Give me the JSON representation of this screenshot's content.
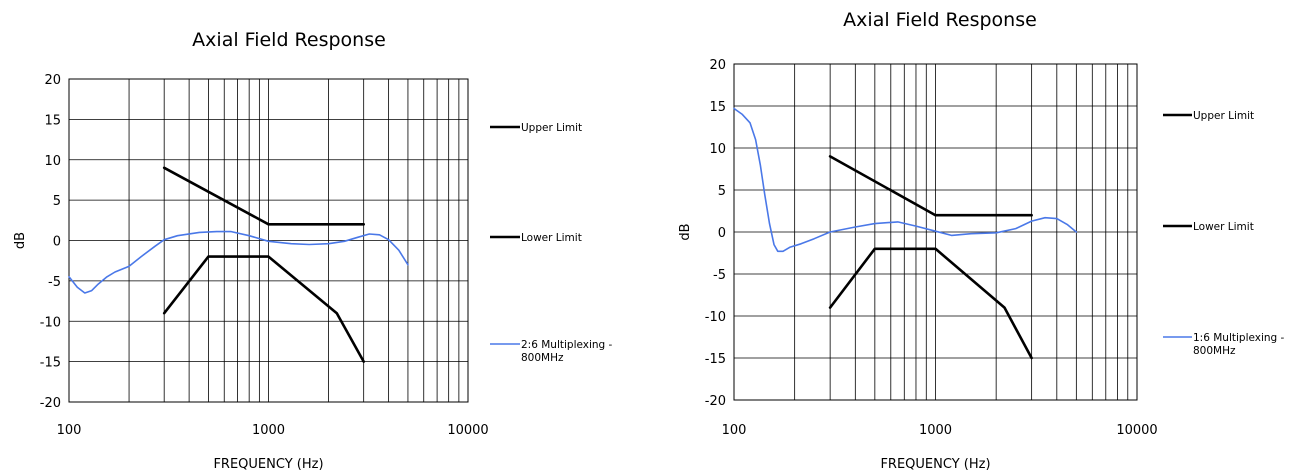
{
  "chart_data": [
    {
      "type": "line",
      "title": "Axial Field Response",
      "xlabel": "FREQUENCY (Hz)",
      "ylabel": "dB",
      "xscale": "log",
      "xlim": [
        100,
        10000
      ],
      "ylim": [
        -20,
        20
      ],
      "x_tick_labels": [
        "100",
        "1000",
        "10000"
      ],
      "y_tick_labels": [
        "20",
        "15",
        "10",
        "5",
        "0",
        "-5",
        "-10",
        "-15",
        "-20"
      ],
      "grid": true,
      "legend_position": "right",
      "series": [
        {
          "name": "Upper Limit",
          "color": "#000000",
          "x": [
            300,
            1000,
            3000
          ],
          "y": [
            9,
            2,
            2
          ]
        },
        {
          "name": "Lower Limit",
          "color": "#000000",
          "x": [
            300,
            500,
            1000,
            2200,
            3000
          ],
          "y": [
            -9,
            -2,
            -2,
            -9,
            -15
          ]
        },
        {
          "name": "2:6 Multiplexing - 800MHz",
          "color": "#4a78e8",
          "x": [
            100,
            110,
            120,
            130,
            140,
            155,
            170,
            200,
            230,
            270,
            300,
            350,
            450,
            550,
            650,
            800,
            1000,
            1300,
            1600,
            2000,
            2400,
            2800,
            3200,
            3600,
            4000,
            4500,
            5000
          ],
          "y": [
            -4.5,
            -5.8,
            -6.5,
            -6.2,
            -5.4,
            -4.5,
            -3.9,
            -3.2,
            -2.0,
            -0.7,
            0.1,
            0.6,
            1.0,
            1.1,
            1.1,
            0.6,
            -0.1,
            -0.4,
            -0.5,
            -0.4,
            -0.1,
            0.4,
            0.8,
            0.7,
            0.1,
            -1.2,
            -3.0
          ]
        }
      ]
    },
    {
      "type": "line",
      "title": "Axial Field Response",
      "xlabel": "FREQUENCY (Hz)",
      "ylabel": "dB",
      "xscale": "log",
      "xlim": [
        100,
        10000
      ],
      "ylim": [
        -20,
        20
      ],
      "x_tick_labels": [
        "100",
        "1000",
        "10000"
      ],
      "y_tick_labels": [
        "20",
        "15",
        "10",
        "5",
        "0",
        "-5",
        "-10",
        "-15",
        "-20"
      ],
      "grid": true,
      "legend_position": "right",
      "series": [
        {
          "name": "Upper Limit",
          "color": "#000000",
          "x": [
            300,
            1000,
            3000
          ],
          "y": [
            9,
            2,
            2
          ]
        },
        {
          "name": "Lower Limit",
          "color": "#000000",
          "x": [
            300,
            500,
            1000,
            2200,
            3000
          ],
          "y": [
            -9,
            -2,
            -2,
            -9,
            -15
          ]
        },
        {
          "name": "1:6 Multiplexing - 800MHz",
          "color": "#4a78e8",
          "x": [
            100,
            110,
            120,
            128,
            135,
            142,
            150,
            158,
            165,
            175,
            190,
            215,
            250,
            300,
            400,
            500,
            650,
            800,
            1000,
            1200,
            1500,
            2000,
            2500,
            3000,
            3500,
            4000,
            4500,
            5000
          ],
          "y": [
            14.7,
            14.0,
            13.0,
            11.0,
            8.0,
            4.5,
            1.0,
            -1.5,
            -2.3,
            -2.3,
            -1.8,
            -1.4,
            -0.8,
            0.0,
            0.6,
            1.0,
            1.2,
            0.7,
            0.1,
            -0.4,
            -0.2,
            -0.1,
            0.4,
            1.3,
            1.7,
            1.6,
            0.9,
            0.0
          ]
        }
      ]
    }
  ]
}
